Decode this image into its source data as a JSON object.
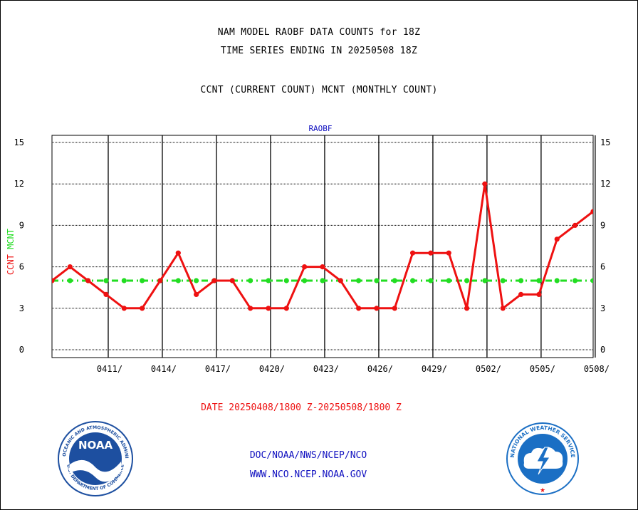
{
  "header": {
    "title_line1": "NAM MODEL RAOBF DATA COUNTS for 18Z",
    "title_line2": "TIME SERIES ENDING IN 20250508 18Z",
    "subtitle": "CCNT (CURRENT COUNT) MCNT (MONTHLY COUNT)"
  },
  "chart_data": {
    "type": "line",
    "title": "RAOBF",
    "ylabel_parts": [
      {
        "text": "CCNT",
        "color": "#ee1111"
      },
      {
        "text": "MCNT",
        "color": "#22dd22"
      }
    ],
    "xlabel": "DATE 20250408/1800 Z-20250508/1800 Z",
    "ylim": [
      0,
      15
    ],
    "yticks": [
      0,
      3,
      6,
      9,
      12,
      15
    ],
    "x_start_day": 0,
    "x_end_day": 30,
    "xticks": [
      {
        "day": 3,
        "label": "0411/"
      },
      {
        "day": 6,
        "label": "0414/"
      },
      {
        "day": 9,
        "label": "0417/"
      },
      {
        "day": 12,
        "label": "0420/"
      },
      {
        "day": 15,
        "label": "0423/"
      },
      {
        "day": 18,
        "label": "0426/"
      },
      {
        "day": 21,
        "label": "0429/"
      },
      {
        "day": 24,
        "label": "0502/"
      },
      {
        "day": 27,
        "label": "0505/"
      },
      {
        "day": 30,
        "label": "0508/"
      }
    ],
    "grid": true,
    "series": [
      {
        "key": "CCNT",
        "color": "#ee1111",
        "values": [
          5,
          6,
          5,
          4,
          3,
          3,
          5,
          7,
          4,
          5,
          5,
          3,
          3,
          3,
          6,
          6,
          5,
          3,
          3,
          3,
          7,
          7,
          7,
          3,
          12,
          3,
          4,
          4,
          8,
          9,
          10
        ]
      },
      {
        "key": "MCNT",
        "color": "#22dd22",
        "values": [
          5,
          5,
          5,
          5,
          5,
          5,
          5,
          5,
          5,
          5,
          5,
          5,
          5,
          5,
          5,
          5,
          5,
          5,
          5,
          5,
          5,
          5,
          5,
          5,
          5,
          5,
          5,
          5,
          5,
          5,
          5
        ]
      }
    ]
  },
  "footer": {
    "link1": "DOC/NOAA/NWS/NCEP/NCO",
    "link2": "WWW.NCO.NCEP.NOAA.GOV"
  },
  "logos": {
    "noaa_text": "NOAA",
    "noaa_ring_top": "NATIONAL OCEANIC AND ATMOSPHERIC ADMINISTRATION",
    "noaa_ring_bottom": "U.S. DEPARTMENT OF COMMERCE",
    "nws_ring": "NATIONAL WEATHER SERVICE"
  },
  "colors": {
    "ccnt": "#ee1111",
    "mcnt": "#22dd22",
    "link": "#1010c0",
    "noaa_blue": "#1d4fa0",
    "nws_blue": "#1b6fc4"
  }
}
